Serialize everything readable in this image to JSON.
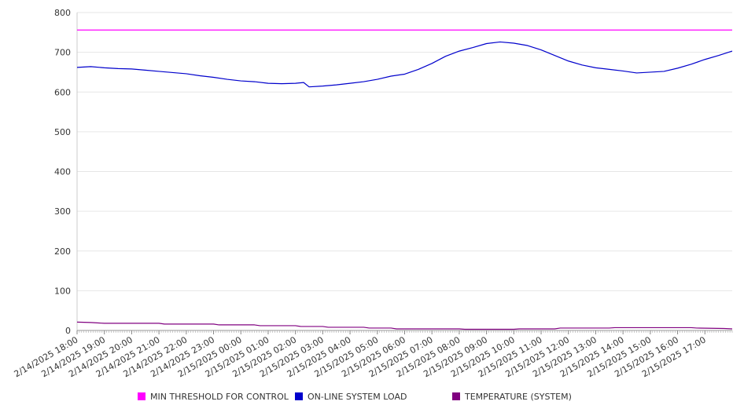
{
  "chart_data": {
    "type": "line",
    "title": "",
    "xlabel": "",
    "ylabel": "",
    "ylim": [
      0,
      800
    ],
    "y_ticks": [
      "0",
      "100",
      "200",
      "300",
      "400",
      "500",
      "600",
      "700",
      "800"
    ],
    "x_tick_labels": [
      "2/14/2025 18:00",
      "2/14/2025 19:00",
      "2/14/2025 20:00",
      "2/14/2025 21:00",
      "2/14/2025 22:00",
      "2/14/2025 23:00",
      "2/15/2025 00:00",
      "2/15/2025 01:00",
      "2/15/2025 02:00",
      "2/15/2025 03:00",
      "2/15/2025 04:00",
      "2/15/2025 05:00",
      "2/15/2025 06:00",
      "2/15/2025 07:00",
      "2/15/2025 08:00",
      "2/15/2025 09:00",
      "2/15/2025 10:00",
      "2/15/2025 11:00",
      "2/15/2025 12:00",
      "2/15/2025 13:00",
      "2/15/2025 14:00",
      "2/15/2025 15:00",
      "2/15/2025 16:00",
      "2/15/2025 17:00"
    ],
    "x_range_hours": [
      0,
      24
    ],
    "grid": "horizontal",
    "legend_position": "bottom",
    "series": [
      {
        "name": "MIN THRESHOLD FOR CONTROL",
        "color": "#ff00ff",
        "x": [
          0,
          24
        ],
        "values": [
          756,
          756
        ]
      },
      {
        "name": "ON-LINE SYSTEM LOAD",
        "color": "#0000cc",
        "x": [
          0,
          0.5,
          1,
          1.5,
          2,
          2.5,
          3,
          3.5,
          4,
          4.5,
          5,
          5.5,
          6,
          6.5,
          7,
          7.5,
          8,
          8.3,
          8.5,
          9,
          9.5,
          10,
          10.5,
          11,
          11.5,
          12,
          12.5,
          13,
          13.5,
          14,
          14.5,
          15,
          15.5,
          16,
          16.5,
          17,
          17.5,
          18,
          18.5,
          19,
          19.5,
          20,
          20.5,
          21,
          21.5,
          22,
          22.5,
          23,
          23.5,
          24
        ],
        "values": [
          662,
          664,
          661,
          659,
          658,
          655,
          652,
          649,
          646,
          641,
          637,
          632,
          628,
          626,
          622,
          621,
          622,
          624,
          613,
          615,
          618,
          622,
          626,
          632,
          640,
          645,
          657,
          672,
          690,
          703,
          712,
          722,
          726,
          723,
          717,
          706,
          692,
          678,
          668,
          661,
          657,
          653,
          648,
          650,
          652,
          660,
          670,
          682,
          692,
          703
        ]
      },
      {
        "name": "TEMPERATURE (SYSTEM)",
        "color": "#800080",
        "x": [
          0,
          0.5,
          1,
          3,
          3.2,
          5,
          5.2,
          6.5,
          6.7,
          8,
          8.2,
          9,
          9.2,
          10.5,
          10.7,
          11.5,
          11.7,
          14,
          14.2,
          16,
          16.2,
          17.5,
          17.7,
          19.5,
          19.7,
          22.5,
          22.7,
          23.7,
          24
        ],
        "values": [
          21,
          20,
          18,
          18,
          16,
          16,
          14,
          14,
          12,
          12,
          10,
          10,
          8,
          8,
          6,
          6,
          4,
          4,
          3,
          3,
          4,
          4,
          6,
          6,
          7,
          7,
          6,
          5,
          4
        ]
      }
    ]
  }
}
